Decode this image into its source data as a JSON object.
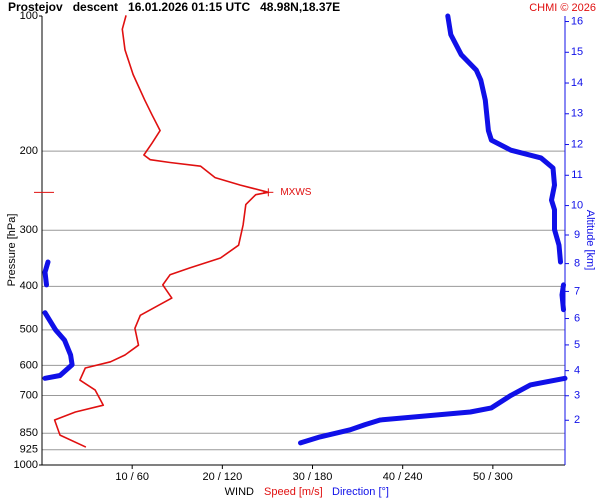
{
  "chart_data": {
    "type": "profile",
    "title": "Prostejov   descent   16.01.2026 01:15 UTC   48.98N,18.37E",
    "credit": "CHMI © 2026",
    "ylabel": "Pressure [hPa]",
    "y2label": "Altitude [km]",
    "xlabel": "WIND",
    "annotation": "MXWS",
    "ylim": [
      100,
      1000
    ],
    "yscale": "log",
    "yticks": [
      100,
      200,
      300,
      400,
      500,
      600,
      700,
      850,
      925,
      1000
    ],
    "y2ticks": [
      2,
      3,
      4,
      5,
      6,
      7,
      8,
      9,
      10,
      11,
      12,
      13,
      14,
      15,
      16
    ],
    "xlim": [
      0,
      58
    ],
    "x2lim": [
      0,
      348
    ],
    "xticks": [
      {
        "value": 10,
        "label": "10 / 60"
      },
      {
        "value": 20,
        "label": "20 / 120"
      },
      {
        "value": 30,
        "label": "30 / 180"
      },
      {
        "value": 40,
        "label": "40 / 240"
      },
      {
        "value": 50,
        "label": "50 / 300"
      }
    ],
    "grid": true,
    "series": [
      {
        "name": "Speed [m/s]",
        "color": "#e01010",
        "axis": "x",
        "pressure": [
          100,
          107,
          119,
          135,
          154,
          166,
          180,
          192,
          204,
          209,
          212,
          216,
          229,
          238,
          247,
          250,
          263,
          292,
          324,
          346,
          364,
          377,
          397,
          425,
          441,
          464,
          496,
          541,
          569,
          589,
          608,
          647,
          681,
          736,
          762,
          794,
          858,
          911
        ],
        "values": [
          9.3,
          8.9,
          9.2,
          10.1,
          11.4,
          12.2,
          13.1,
          12.2,
          11.3,
          12.0,
          14.2,
          17.6,
          19.2,
          22.0,
          25.1,
          23.7,
          22.6,
          22.3,
          21.8,
          19.8,
          16.4,
          14.2,
          13.4,
          14.4,
          12.9,
          10.9,
          10.3,
          10.7,
          9.2,
          7.6,
          4.8,
          4.2,
          5.9,
          6.8,
          3.7,
          1.4,
          2.0,
          4.8
        ]
      },
      {
        "name": "Direction [°]",
        "color": "#1010e8",
        "axis": "x2",
        "pressure": [
          100,
          110,
          122,
          132,
          139,
          154,
          180,
          189,
          199,
          207,
          218,
          238,
          257,
          270,
          299,
          324,
          353,
          null,
          353,
          372,
          397,
          null,
          397,
          418,
          451,
          null,
          458,
          500,
          527,
          569,
          598,
          632,
          641,
          null,
          641,
          663,
          700,
          746,
          762,
          794,
          813,
          835,
          866,
          893
        ],
        "values": [
          270,
          272,
          279,
          289,
          292,
          295,
          297,
          299,
          312,
          332,
          340,
          341,
          339,
          341,
          341,
          344,
          345,
          null,
          4,
          2,
          3,
          null,
          347,
          346,
          347,
          null,
          2,
          9,
          15,
          19,
          20,
          12,
          2,
          null,
          348,
          325,
          312,
          299,
          285,
          225,
          215,
          205,
          185,
          172
        ]
      }
    ]
  }
}
